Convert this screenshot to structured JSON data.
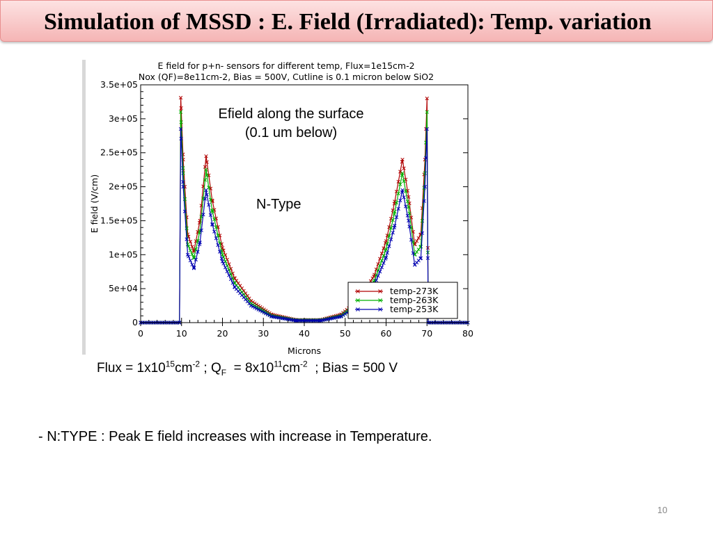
{
  "slide": {
    "title": "Simulation of MSSD : E. Field (Irradiated): Temp. variation",
    "annotation_1_line1": "Efield along the surface",
    "annotation_1_line2": "(0.1 um below)",
    "annotation_2": "N-Type",
    "caption": {
      "flux_prefix": "Flux = 1x10",
      "flux_exp": "15",
      "flux_unit": "cm",
      "flux_unit_exp": "-2",
      "sep1": " ; Q",
      "q_sub": "F",
      "q_eq": "  = 8x10",
      "q_exp": "11",
      "q_unit": "cm",
      "q_unit_exp": "-2",
      "bias": "  ; Bias = 500 V"
    },
    "bullet": "- N:TYPE : Peak E field increases with increase in Temperature.",
    "page_number": "10"
  },
  "chart_data": {
    "type": "line",
    "title_line1": "E field for p+n- sensors for different temp, Flux=1e15cm-2",
    "title_line2": "Nox (QF)=8e11cm-2, Bias = 500V, Cutline is 0.1 micron below SiO2",
    "xlabel": "Microns",
    "ylabel": "E field (V/cm)",
    "xlim": [
      0,
      80
    ],
    "ylim": [
      0,
      350000
    ],
    "xticks": [
      "0",
      "10",
      "20",
      "30",
      "40",
      "50",
      "60",
      "70",
      "80"
    ],
    "yticks": [
      "0",
      "5e+04",
      "1e+05",
      "1.5e+05",
      "2e+05",
      "2.5e+05",
      "3e+05",
      "3.5e+05"
    ],
    "legend_position": "bottom-right",
    "marker": "x",
    "series": [
      {
        "name": "temp-273K",
        "color": "#b00000",
        "points": [
          [
            0,
            0
          ],
          [
            9.5,
            0
          ],
          [
            9.8,
            331000
          ],
          [
            10.4,
            240000
          ],
          [
            11.5,
            130000
          ],
          [
            13,
            105000
          ],
          [
            14.5,
            150000
          ],
          [
            16,
            245000
          ],
          [
            17.5,
            180000
          ],
          [
            20,
            110000
          ],
          [
            23,
            65000
          ],
          [
            27,
            32000
          ],
          [
            32,
            12000
          ],
          [
            38,
            4000
          ],
          [
            44,
            4000
          ],
          [
            49,
            12000
          ],
          [
            53,
            32000
          ],
          [
            57,
            68000
          ],
          [
            60,
            120000
          ],
          [
            62,
            175000
          ],
          [
            64,
            240000
          ],
          [
            65.5,
            185000
          ],
          [
            67,
            115000
          ],
          [
            68.5,
            130000
          ],
          [
            69.5,
            240000
          ],
          [
            70,
            330000
          ],
          [
            70.3,
            0
          ],
          [
            80,
            0
          ]
        ]
      },
      {
        "name": "temp-263K",
        "color": "#00b000",
        "points": [
          [
            0,
            0
          ],
          [
            9.5,
            0
          ],
          [
            9.8,
            310000
          ],
          [
            10.4,
            220000
          ],
          [
            11.5,
            115000
          ],
          [
            13,
            95000
          ],
          [
            14.5,
            135000
          ],
          [
            16,
            225000
          ],
          [
            17.5,
            165000
          ],
          [
            20,
            100000
          ],
          [
            23,
            58000
          ],
          [
            27,
            28000
          ],
          [
            32,
            10000
          ],
          [
            38,
            3500
          ],
          [
            44,
            3500
          ],
          [
            49,
            10000
          ],
          [
            53,
            28000
          ],
          [
            57,
            60000
          ],
          [
            60,
            108000
          ],
          [
            62,
            160000
          ],
          [
            64,
            220000
          ],
          [
            65.5,
            170000
          ],
          [
            67,
            100000
          ],
          [
            68.5,
            112000
          ],
          [
            69.5,
            220000
          ],
          [
            70,
            310000
          ],
          [
            70.3,
            0
          ],
          [
            80,
            0
          ]
        ]
      },
      {
        "name": "temp-253K",
        "color": "#0000b0",
        "points": [
          [
            0,
            0
          ],
          [
            9.5,
            0
          ],
          [
            9.8,
            285000
          ],
          [
            10.4,
            200000
          ],
          [
            11.5,
            100000
          ],
          [
            13,
            80000
          ],
          [
            14.5,
            118000
          ],
          [
            16,
            195000
          ],
          [
            17.5,
            145000
          ],
          [
            20,
            90000
          ],
          [
            23,
            52000
          ],
          [
            27,
            25000
          ],
          [
            32,
            9000
          ],
          [
            38,
            3000
          ],
          [
            44,
            3000
          ],
          [
            49,
            9000
          ],
          [
            53,
            25000
          ],
          [
            57,
            54000
          ],
          [
            60,
            96000
          ],
          [
            62,
            140000
          ],
          [
            64,
            195000
          ],
          [
            65.5,
            150000
          ],
          [
            67,
            85000
          ],
          [
            68.5,
            95000
          ],
          [
            69.5,
            200000
          ],
          [
            70,
            285000
          ],
          [
            70.3,
            0
          ],
          [
            80,
            0
          ]
        ]
      }
    ]
  }
}
